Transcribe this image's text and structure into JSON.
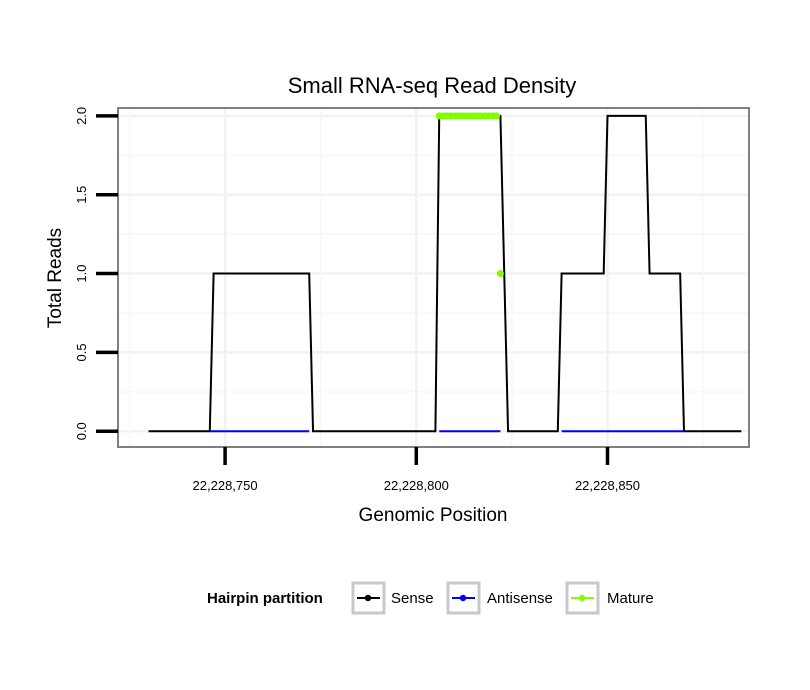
{
  "chart_data": {
    "type": "line",
    "title": "Small RNA-seq Read Density",
    "xlabel": "Genomic Position",
    "ylabel": "Total Reads",
    "xlim": [
      22228722,
      22228887
    ],
    "ylim": [
      -0.1,
      2.05
    ],
    "x_ticks": [
      22228750,
      22228800,
      22228850
    ],
    "x_tick_labels": [
      "22,228,750",
      "22,228,800",
      "22,228,850"
    ],
    "y_ticks": [
      0,
      0.5,
      1,
      1.5,
      2
    ],
    "y_tick_labels": [
      "0.0",
      "0.5",
      "1.0",
      "1.5",
      "2.0"
    ],
    "grid": true,
    "legend": {
      "title": "Hairpin partition",
      "position": "bottom",
      "entries": [
        "Sense",
        "Antisense",
        "Mature"
      ]
    },
    "series": [
      {
        "name": "Sense",
        "color": "#000000",
        "style": "line",
        "x": [
          22228730,
          22228746,
          22228747,
          22228772,
          22228773,
          22228805,
          22228806,
          22228822,
          22228824,
          22228837,
          22228838,
          22228849,
          22228850,
          22228860,
          22228861,
          22228869,
          22228870,
          22228885
        ],
        "y": [
          0,
          0,
          1,
          1,
          0,
          0,
          2,
          2,
          0,
          0,
          1,
          1,
          2,
          2,
          1,
          1,
          0,
          0
        ]
      },
      {
        "name": "Antisense",
        "color": "#0000ff",
        "style": "line",
        "x": [
          22228746,
          22228772,
          22228806,
          22228822,
          22228838,
          22228870
        ],
        "y": [
          0,
          0,
          0,
          0,
          0,
          0
        ],
        "segments": [
          [
            0,
            1
          ],
          [
            2,
            3
          ],
          [
            4,
            5
          ]
        ]
      },
      {
        "name": "Mature",
        "color": "#7fff00",
        "style": "points",
        "x": [
          22228806,
          22228807,
          22228808,
          22228809,
          22228810,
          22228811,
          22228812,
          22228813,
          22228814,
          22228815,
          22228816,
          22228817,
          22228818,
          22228819,
          22228820,
          22228821,
          22228822
        ],
        "y": [
          2,
          2,
          2,
          2,
          2,
          2,
          2,
          2,
          2,
          2,
          2,
          2,
          2,
          2,
          2,
          2,
          1
        ]
      }
    ]
  }
}
